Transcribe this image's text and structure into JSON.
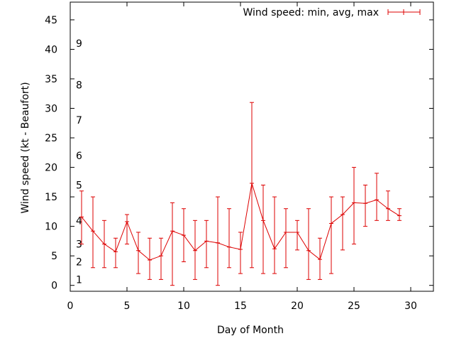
{
  "chart_data": {
    "type": "line",
    "title": "",
    "xlabel": "Day of Month",
    "ylabel": "Wind speed (kt - Beaufort)",
    "xlim": [
      0,
      32
    ],
    "ylim": [
      -1,
      48
    ],
    "x_ticks": [
      0,
      5,
      10,
      15,
      20,
      25,
      30
    ],
    "y_ticks": [
      0,
      5,
      10,
      15,
      20,
      25,
      30,
      35,
      40,
      45
    ],
    "grid": false,
    "legend_position": "top-right",
    "beaufort_labels": [
      {
        "label": "1",
        "kt": 1
      },
      {
        "label": "2",
        "kt": 4
      },
      {
        "label": "3",
        "kt": 7
      },
      {
        "label": "4",
        "kt": 11
      },
      {
        "label": "5",
        "kt": 17
      },
      {
        "label": "6",
        "kt": 22
      },
      {
        "label": "7",
        "kt": 28
      },
      {
        "label": "8",
        "kt": 34
      },
      {
        "label": "9",
        "kt": 41
      }
    ],
    "series": [
      {
        "name": "Wind speed: min, avg, max",
        "color": "#dd0000",
        "x": [
          1,
          2,
          3,
          4,
          5,
          6,
          7,
          8,
          9,
          10,
          11,
          12,
          13,
          14,
          15,
          16,
          17,
          18,
          19,
          20,
          21,
          22,
          23,
          24,
          25,
          26,
          27,
          28,
          29
        ],
        "avg": [
          11.6,
          9.2,
          7.0,
          5.7,
          10.8,
          5.9,
          4.3,
          5.0,
          9.2,
          8.5,
          5.9,
          7.5,
          7.2,
          6.5,
          6.1,
          17.3,
          11.0,
          6.2,
          9.0,
          9.0,
          5.9,
          4.4,
          10.5,
          12.0,
          14.0,
          13.9,
          14.5,
          13.0,
          11.8
        ],
        "min": [
          7,
          3,
          3,
          3,
          7,
          2,
          1,
          1,
          0,
          4,
          1,
          3,
          0,
          3,
          2,
          3,
          2,
          2,
          3,
          6,
          1,
          1,
          2,
          6,
          7,
          10,
          11,
          11,
          11
        ],
        "max": [
          16,
          15,
          11,
          8,
          12,
          9,
          8,
          8,
          14,
          13,
          11,
          11,
          15,
          13,
          9,
          31,
          17,
          15,
          13,
          11,
          13,
          8,
          15,
          15,
          20,
          17,
          19,
          16,
          13
        ]
      }
    ]
  }
}
